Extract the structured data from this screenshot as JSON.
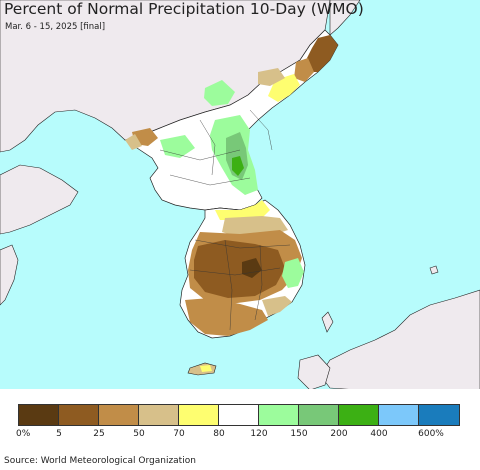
{
  "title": "Percent of Normal Precipitation 10-Day (WMO)",
  "subtitle": "Mar. 6 - 15, 2025 [final]",
  "source": "Source: World Meteorological Organization",
  "colors": {
    "sea": "#b7fcfc",
    "foreign_land": "#efeaee",
    "border": "#222222"
  },
  "legend": {
    "colors": [
      "#5a3a12",
      "#8e5b21",
      "#c18d48",
      "#d7c08a",
      "#fefe70",
      "#ffffff",
      "#9cfc9c",
      "#78c878",
      "#3cb014",
      "#7cc8fa",
      "#1a7cbc"
    ],
    "labels": [
      "0%",
      "5",
      "25",
      "50",
      "70",
      "80",
      "120",
      "150",
      "200",
      "400",
      "600%"
    ]
  }
}
